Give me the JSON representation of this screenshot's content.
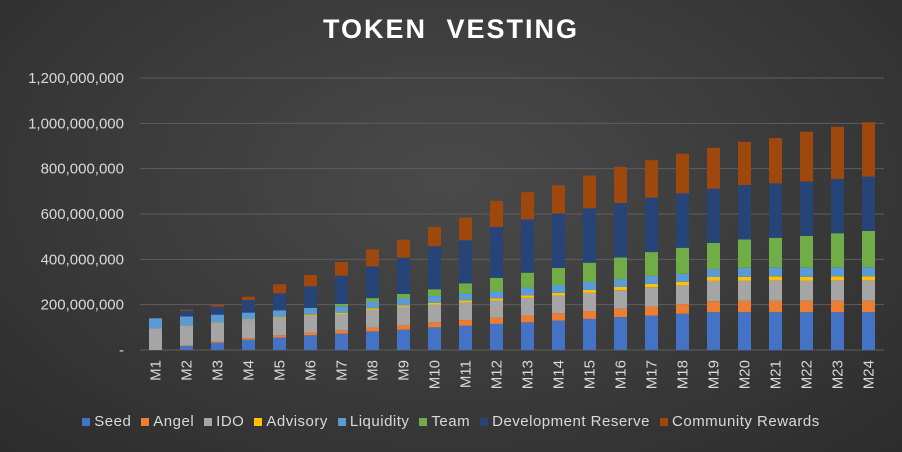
{
  "chart_data": {
    "type": "bar",
    "stacked": true,
    "title": "TOKEN  VESTING",
    "xlabel": "",
    "ylabel": "",
    "ylim": [
      0,
      1200000000
    ],
    "yticks": [
      "-",
      "200,000,000",
      "400,000,000",
      "600,000,000",
      "800,000,000",
      "1,000,000,000",
      "1,200,000,000"
    ],
    "grid": true,
    "legend_position": "bottom",
    "categories": [
      "M1",
      "M2",
      "M3",
      "M4",
      "M5",
      "M6",
      "M7",
      "M8",
      "M9",
      "M10",
      "M11",
      "M12",
      "M13",
      "M14",
      "M15",
      "M16",
      "M17",
      "M18",
      "M19",
      "M20",
      "M21",
      "M22",
      "M23",
      "M24"
    ],
    "series": [
      {
        "name": "Seed",
        "color": "#4472c4",
        "values": [
          0,
          17000000,
          32000000,
          45000000,
          55000000,
          65000000,
          72000000,
          82000000,
          90000000,
          100000000,
          107000000,
          115000000,
          122000000,
          130000000,
          137000000,
          145000000,
          152000000,
          160000000,
          167000000,
          167000000,
          167000000,
          167000000,
          167000000,
          167000000
        ]
      },
      {
        "name": "Angel",
        "color": "#ed7d31",
        "values": [
          0,
          2000000,
          5000000,
          7000000,
          10000000,
          12000000,
          15000000,
          17000000,
          20000000,
          22000000,
          25000000,
          27000000,
          30000000,
          32000000,
          35000000,
          37000000,
          40000000,
          42000000,
          48000000,
          50000000,
          50000000,
          50000000,
          50000000,
          50000000
        ]
      },
      {
        "name": "IDO",
        "color": "#a5a5a5",
        "values": [
          95000000,
          88000000,
          82000000,
          80000000,
          76000000,
          74000000,
          70000000,
          78000000,
          80000000,
          78000000,
          78000000,
          76000000,
          78000000,
          78000000,
          80000000,
          82000000,
          85000000,
          83000000,
          90000000,
          88000000,
          90000000,
          88000000,
          90000000,
          90000000
        ]
      },
      {
        "name": "Advisory",
        "color": "#ffc000",
        "values": [
          0,
          1000000,
          2000000,
          3000000,
          4000000,
          5000000,
          6000000,
          7000000,
          7000000,
          8000000,
          9000000,
          10000000,
          11000000,
          12000000,
          13000000,
          14000000,
          15000000,
          16000000,
          17000000,
          18000000,
          18000000,
          18000000,
          18000000,
          18000000
        ]
      },
      {
        "name": "Liquidity",
        "color": "#5b9bd5",
        "values": [
          45000000,
          40000000,
          35000000,
          30000000,
          30000000,
          30000000,
          30000000,
          30000000,
          30000000,
          30000000,
          30000000,
          30000000,
          35000000,
          35000000,
          35000000,
          35000000,
          35000000,
          35000000,
          35000000,
          40000000,
          40000000,
          40000000,
          40000000,
          40000000
        ]
      },
      {
        "name": "Team",
        "color": "#70ad47",
        "values": [
          0,
          0,
          0,
          0,
          0,
          0,
          10000000,
          15000000,
          20000000,
          30000000,
          45000000,
          60000000,
          65000000,
          75000000,
          85000000,
          95000000,
          105000000,
          115000000,
          115000000,
          125000000,
          130000000,
          140000000,
          150000000,
          160000000
        ]
      },
      {
        "name": "Development Reserve",
        "color": "#264478",
        "values": [
          0,
          25000000,
          35000000,
          55000000,
          75000000,
          95000000,
          125000000,
          140000000,
          160000000,
          190000000,
          190000000,
          225000000,
          235000000,
          240000000,
          240000000,
          240000000,
          240000000,
          240000000,
          240000000,
          240000000,
          240000000,
          240000000,
          240000000,
          240000000
        ]
      },
      {
        "name": "Community Rewards",
        "color": "#9e480e",
        "values": [
          0,
          5000000,
          10000000,
          15000000,
          40000000,
          50000000,
          60000000,
          75000000,
          80000000,
          85000000,
          100000000,
          115000000,
          120000000,
          125000000,
          145000000,
          160000000,
          165000000,
          175000000,
          180000000,
          190000000,
          200000000,
          220000000,
          230000000,
          240000000
        ]
      }
    ]
  }
}
